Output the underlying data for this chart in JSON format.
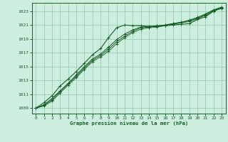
{
  "title": "Graphe pression niveau de la mer (hPa)",
  "xlabel_hours": [
    0,
    1,
    2,
    3,
    4,
    5,
    6,
    7,
    8,
    9,
    10,
    11,
    12,
    13,
    14,
    15,
    16,
    17,
    18,
    19,
    20,
    21,
    22,
    23
  ],
  "yticks": [
    1009,
    1011,
    1013,
    1015,
    1017,
    1019,
    1021,
    1023
  ],
  "ylim": [
    1008.2,
    1024.2
  ],
  "xlim": [
    -0.5,
    23.5
  ],
  "bg_color": "#cceedd",
  "grid_color": "#99ccbb",
  "line_color": "#1a5c2a",
  "line1": [
    1009.0,
    1009.8,
    1010.8,
    1012.2,
    1013.2,
    1014.3,
    1015.5,
    1016.7,
    1017.6,
    1019.2,
    1020.6,
    1021.0,
    1020.9,
    1020.9,
    1020.8,
    1020.8,
    1020.9,
    1021.0,
    1021.1,
    1021.2,
    1021.8,
    1022.2,
    1023.0,
    1023.5
  ],
  "line2": [
    1009.0,
    1009.5,
    1010.4,
    1011.5,
    1012.6,
    1013.8,
    1015.0,
    1016.1,
    1016.8,
    1017.8,
    1018.9,
    1019.7,
    1020.3,
    1020.7,
    1020.8,
    1020.9,
    1021.0,
    1021.2,
    1021.4,
    1021.7,
    1022.1,
    1022.6,
    1023.2,
    1023.6
  ],
  "line3": [
    1009.0,
    1009.4,
    1010.2,
    1011.4,
    1012.5,
    1013.6,
    1014.8,
    1015.9,
    1016.6,
    1017.5,
    1018.6,
    1019.4,
    1020.1,
    1020.6,
    1020.7,
    1020.8,
    1021.0,
    1021.2,
    1021.4,
    1021.6,
    1022.0,
    1022.5,
    1023.1,
    1023.5
  ],
  "line4": [
    1009.0,
    1009.3,
    1010.0,
    1011.2,
    1012.3,
    1013.4,
    1014.6,
    1015.7,
    1016.4,
    1017.2,
    1018.3,
    1019.2,
    1019.9,
    1020.4,
    1020.6,
    1020.7,
    1020.9,
    1021.1,
    1021.3,
    1021.5,
    1021.9,
    1022.4,
    1023.0,
    1023.4
  ]
}
